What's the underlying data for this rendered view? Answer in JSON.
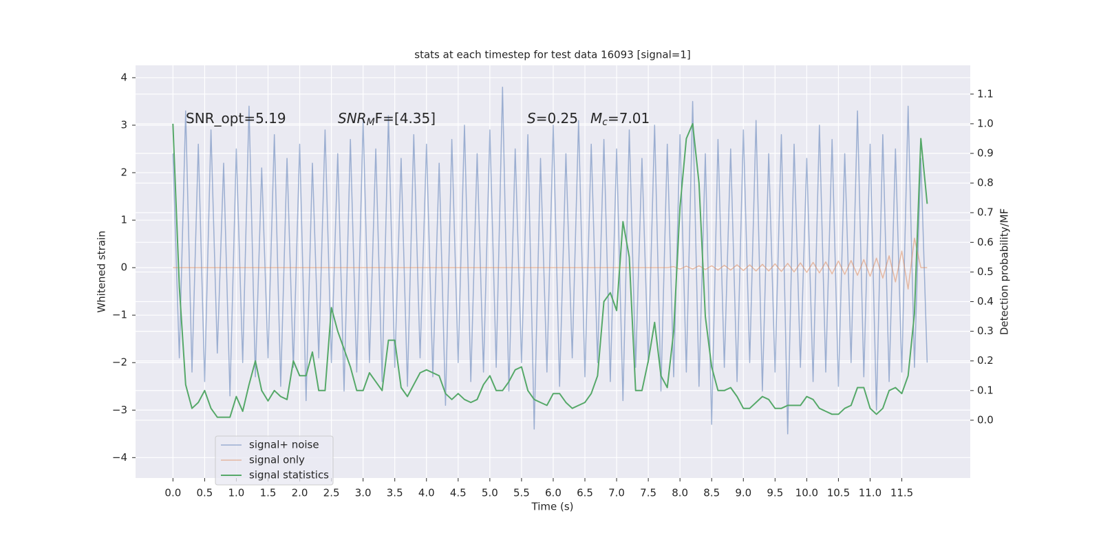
{
  "chart_data": {
    "type": "line",
    "title": "stats at each timestep for test data 16093 [signal=1]",
    "xlabel": "Time (s)",
    "ylabel": "Whitened strain",
    "y2label": "Detection probability/MF",
    "annotations": [
      [
        {
          "text": "SNR_opt=5.19",
          "italic": false,
          "sub": false
        }
      ],
      [
        {
          "text": "SNR",
          "italic": true,
          "sub": false
        },
        {
          "text": "M",
          "italic": true,
          "sub": true
        },
        {
          "text": "F=[4.35]",
          "italic": false,
          "sub": false
        }
      ],
      [
        {
          "text": "S",
          "italic": true,
          "sub": false
        },
        {
          "text": "=0.25",
          "italic": false,
          "sub": false
        }
      ],
      [
        {
          "text": "M",
          "italic": true,
          "sub": false
        },
        {
          "text": "c",
          "italic": true,
          "sub": true
        },
        {
          "text": "=7.01",
          "italic": false,
          "sub": false
        }
      ]
    ],
    "x": [
      0.0,
      0.1,
      0.2,
      0.3,
      0.4,
      0.5,
      0.6,
      0.7,
      0.8,
      0.9,
      1.0,
      1.1,
      1.2,
      1.3,
      1.4,
      1.5,
      1.6,
      1.7,
      1.8,
      1.9,
      2.0,
      2.1,
      2.2,
      2.3,
      2.4,
      2.5,
      2.6,
      2.7,
      2.8,
      2.9,
      3.0,
      3.1,
      3.2,
      3.3,
      3.4,
      3.5,
      3.6,
      3.7,
      3.8,
      3.9,
      4.0,
      4.1,
      4.2,
      4.3,
      4.4,
      4.5,
      4.6,
      4.7,
      4.8,
      4.9,
      5.0,
      5.1,
      5.2,
      5.3,
      5.4,
      5.5,
      5.6,
      5.7,
      5.8,
      5.9,
      6.0,
      6.1,
      6.2,
      6.3,
      6.4,
      6.5,
      6.6,
      6.7,
      6.8,
      6.9,
      7.0,
      7.1,
      7.2,
      7.3,
      7.4,
      7.5,
      7.6,
      7.7,
      7.8,
      7.9,
      8.0,
      8.1,
      8.2,
      8.3,
      8.4,
      8.5,
      8.6,
      8.7,
      8.8,
      8.9,
      9.0,
      9.1,
      9.2,
      9.3,
      9.4,
      9.5,
      9.6,
      9.7,
      9.8,
      9.9,
      10.0,
      10.1,
      10.2,
      10.3,
      10.4,
      10.5,
      10.6,
      10.7,
      10.8,
      10.9,
      11.0,
      11.1,
      11.2,
      11.3,
      11.4,
      11.5,
      11.6,
      11.7,
      11.8,
      11.9
    ],
    "series": [
      {
        "name": "signal+ noise",
        "color": "#4c72b0",
        "values": [
          2.4,
          -1.9,
          3.3,
          -2.2,
          2.6,
          -2.4,
          2.9,
          -1.8,
          2.2,
          -2.7,
          2.5,
          -2.0,
          3.4,
          -2.3,
          2.1,
          -1.9,
          2.8,
          -2.5,
          2.3,
          -2.1,
          2.6,
          -2.8,
          2.2,
          -1.9,
          2.9,
          -2.0,
          2.4,
          -2.6,
          2.7,
          -2.2,
          3.1,
          -2.0,
          2.5,
          -2.4,
          3.2,
          -2.1,
          2.3,
          -2.5,
          2.8,
          -1.9,
          2.6,
          -2.3,
          2.2,
          -2.9,
          2.7,
          -2.0,
          3.0,
          -2.4,
          2.4,
          -2.2,
          2.9,
          -2.1,
          3.8,
          -2.6,
          2.5,
          -2.0,
          2.8,
          -3.4,
          2.3,
          -2.2,
          3.0,
          -2.5,
          2.4,
          -1.9,
          3.1,
          -2.3,
          2.6,
          -2.0,
          2.7,
          -2.4,
          2.5,
          -2.8,
          2.9,
          -2.1,
          2.3,
          -2.0,
          3.0,
          -2.6,
          2.6,
          -2.3,
          2.8,
          -2.2,
          3.5,
          -2.5,
          2.4,
          -3.3,
          2.7,
          -2.1,
          2.5,
          -2.4,
          2.9,
          -2.0,
          3.1,
          -2.6,
          2.4,
          -2.2,
          2.8,
          -3.5,
          2.6,
          -2.1,
          2.3,
          -2.4,
          3.0,
          -2.2,
          2.7,
          -2.5,
          2.4,
          -2.0,
          3.3,
          -2.3,
          2.6,
          -3.0,
          2.8,
          -2.4,
          2.5,
          -2.2,
          3.4,
          -2.1,
          2.3,
          -2.0
        ]
      },
      {
        "name": "signal only",
        "color": "#dd8452",
        "values": [
          0,
          0,
          0,
          0,
          0,
          0,
          0,
          0,
          0,
          0,
          0,
          0,
          0,
          0,
          0,
          0,
          0,
          0,
          0,
          0,
          0,
          0,
          0,
          0,
          0,
          0,
          0,
          0,
          0,
          0,
          0,
          0,
          0,
          0,
          0,
          0,
          0,
          0,
          0,
          0,
          0,
          0,
          0,
          0,
          0,
          0,
          0,
          0,
          0,
          0,
          0,
          0,
          0,
          0,
          0,
          0,
          0,
          0,
          0,
          0,
          0,
          0,
          0,
          0,
          0,
          0,
          0,
          0,
          0,
          0,
          0,
          0,
          0,
          0,
          0,
          0,
          0,
          0,
          0,
          0.02,
          -0.03,
          0.03,
          -0.03,
          0.04,
          -0.04,
          0.04,
          -0.05,
          0.05,
          -0.05,
          0.06,
          -0.06,
          0.06,
          -0.07,
          0.07,
          -0.07,
          0.08,
          -0.08,
          0.09,
          -0.09,
          0.1,
          -0.1,
          0.11,
          -0.11,
          0.12,
          -0.13,
          0.14,
          -0.14,
          0.15,
          -0.16,
          0.17,
          -0.18,
          0.2,
          -0.22,
          0.25,
          -0.3,
          0.35,
          -0.45,
          0.62,
          0,
          0
        ]
      },
      {
        "name": "signal statistics",
        "color": "#55a868",
        "axis": "y2",
        "values": [
          1.0,
          0.45,
          0.12,
          0.04,
          0.06,
          0.1,
          0.04,
          0.01,
          0.01,
          0.01,
          0.08,
          0.03,
          0.12,
          0.2,
          0.1,
          0.065,
          0.1,
          0.08,
          0.07,
          0.2,
          0.15,
          0.15,
          0.23,
          0.1,
          0.1,
          0.38,
          0.3,
          0.24,
          0.18,
          0.1,
          0.1,
          0.16,
          0.13,
          0.1,
          0.27,
          0.27,
          0.11,
          0.08,
          0.12,
          0.16,
          0.17,
          0.16,
          0.15,
          0.09,
          0.07,
          0.09,
          0.07,
          0.06,
          0.07,
          0.12,
          0.15,
          0.1,
          0.1,
          0.13,
          0.17,
          0.18,
          0.1,
          0.07,
          0.06,
          0.05,
          0.09,
          0.09,
          0.06,
          0.04,
          0.05,
          0.06,
          0.09,
          0.15,
          0.4,
          0.43,
          0.37,
          0.67,
          0.55,
          0.1,
          0.1,
          0.2,
          0.33,
          0.15,
          0.11,
          0.3,
          0.72,
          0.95,
          1.0,
          0.8,
          0.35,
          0.18,
          0.1,
          0.1,
          0.11,
          0.08,
          0.04,
          0.04,
          0.06,
          0.08,
          0.07,
          0.04,
          0.04,
          0.05,
          0.05,
          0.05,
          0.08,
          0.07,
          0.04,
          0.03,
          0.02,
          0.02,
          0.04,
          0.05,
          0.11,
          0.11,
          0.04,
          0.02,
          0.04,
          0.1,
          0.11,
          0.09,
          0.15,
          0.36,
          0.95,
          0.73
        ]
      }
    ],
    "xlim": [
      -0.59,
      12.58
    ],
    "ylim": [
      -4.43,
      4.26
    ],
    "y2lim": [
      -0.195,
      1.197
    ],
    "xticks": [
      {
        "value": 0,
        "label": "0.0"
      },
      {
        "value": 0.5,
        "label": "0.5"
      },
      {
        "value": 1,
        "label": "1.0"
      },
      {
        "value": 1.5,
        "label": "1.5"
      },
      {
        "value": 2,
        "label": "2.0"
      },
      {
        "value": 2.5,
        "label": "2.5"
      },
      {
        "value": 3,
        "label": "3.0"
      },
      {
        "value": 3.5,
        "label": "3.5"
      },
      {
        "value": 4,
        "label": "4.0"
      },
      {
        "value": 4.5,
        "label": "4.5"
      },
      {
        "value": 5,
        "label": "5.0"
      },
      {
        "value": 5.5,
        "label": "5.5"
      },
      {
        "value": 6,
        "label": "6.0"
      },
      {
        "value": 6.5,
        "label": "6.5"
      },
      {
        "value": 7,
        "label": "7.0"
      },
      {
        "value": 7.5,
        "label": "7.5"
      },
      {
        "value": 8,
        "label": "8.0"
      },
      {
        "value": 8.5,
        "label": "8.5"
      },
      {
        "value": 9,
        "label": "9.0"
      },
      {
        "value": 9.5,
        "label": "9.5"
      },
      {
        "value": 10,
        "label": "10.0"
      },
      {
        "value": 10.5,
        "label": "10.5"
      },
      {
        "value": 11,
        "label": "11.0"
      },
      {
        "value": 11.5,
        "label": "11.5"
      }
    ],
    "yticks": [
      {
        "value": -4,
        "label": "−4"
      },
      {
        "value": -3,
        "label": "−3"
      },
      {
        "value": -2,
        "label": "−2"
      },
      {
        "value": -1,
        "label": "−1"
      },
      0,
      1,
      2,
      3,
      4
    ],
    "y2ticks": [
      {
        "value": 0,
        "label": "0.0"
      },
      {
        "value": 0.1,
        "label": "0.1"
      },
      {
        "value": 0.2,
        "label": "0.2"
      },
      {
        "value": 0.3,
        "label": "0.3"
      },
      {
        "value": 0.4,
        "label": "0.4"
      },
      {
        "value": 0.5,
        "label": "0.5"
      },
      {
        "value": 0.6,
        "label": "0.6"
      },
      {
        "value": 0.7,
        "label": "0.7"
      },
      {
        "value": 0.8,
        "label": "0.8"
      },
      {
        "value": 0.9,
        "label": "0.9"
      },
      {
        "value": 1,
        "label": "1.0"
      },
      {
        "value": 1.1,
        "label": "1.1"
      }
    ],
    "grid": true,
    "legend": "lower left"
  }
}
